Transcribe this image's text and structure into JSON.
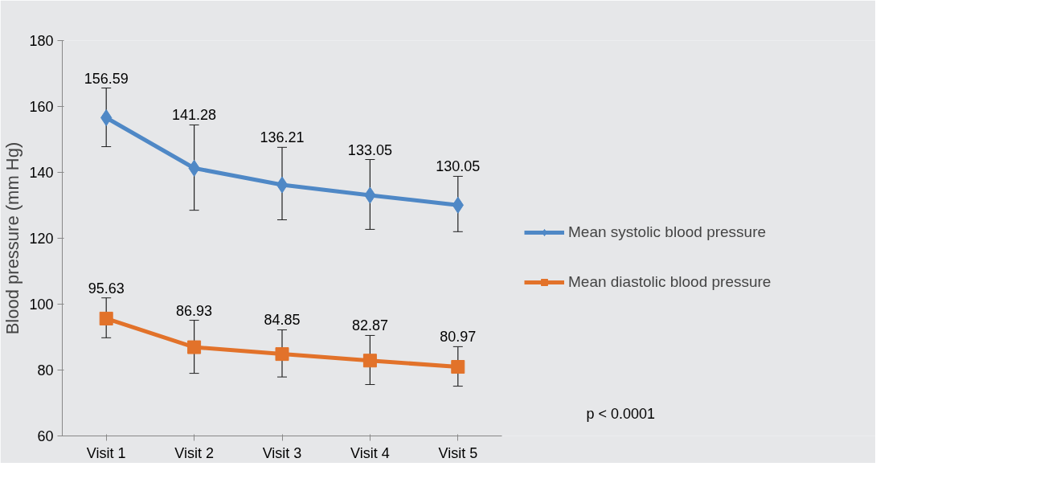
{
  "chart_data": {
    "type": "line",
    "ylabel": "Blood pressure (mm Hg)",
    "categories": [
      "Visit 1",
      "Visit 2",
      "Visit 3",
      "Visit 4",
      "Visit 5"
    ],
    "series": [
      {
        "name": "Mean systolic blood pressure",
        "color": "#4f88c6",
        "marker": "diamond",
        "values": [
          156.59,
          141.28,
          136.21,
          133.05,
          130.05
        ],
        "errors": [
          [
            147.8,
            165.6
          ],
          [
            128.5,
            154.4
          ],
          [
            125.6,
            147.6
          ],
          [
            122.7,
            143.9
          ],
          [
            122.0,
            138.8
          ]
        ]
      },
      {
        "name": "Mean diastolic blood pressure",
        "color": "#e2722a",
        "marker": "square",
        "values": [
          95.63,
          86.93,
          84.85,
          82.87,
          80.97
        ],
        "errors": [
          [
            89.8,
            101.9
          ],
          [
            79.0,
            95.1
          ],
          [
            77.9,
            92.2
          ],
          [
            75.6,
            90.5
          ],
          [
            75.1,
            87.1
          ]
        ]
      }
    ],
    "ylim": [
      60,
      180
    ],
    "yticks": [
      60,
      80,
      100,
      120,
      140,
      160,
      180
    ],
    "data_labels": true,
    "grid": false,
    "legend": "right",
    "annotations": [
      "p < 0.0001"
    ]
  }
}
